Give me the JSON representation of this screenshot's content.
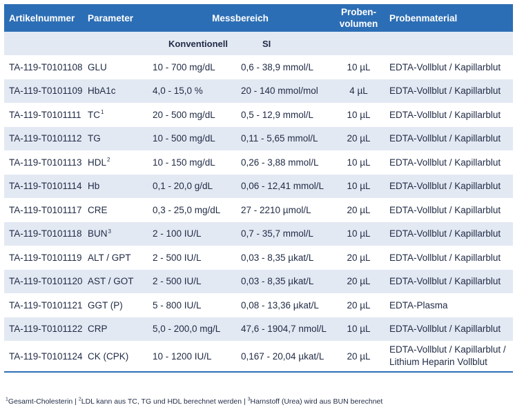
{
  "table": {
    "headers": {
      "artikelnummer": "Artikelnummer",
      "parameter": "Parameter",
      "messbereich": "Messbereich",
      "proben_line1": "Proben-",
      "proben_line2": "volumen",
      "probenmaterial": "Probenmaterial"
    },
    "subheaders": {
      "konventionell": "Konventionell",
      "si": "SI"
    },
    "rows": [
      {
        "artikel": "TA-119-T0101108",
        "param": "GLU",
        "sup": "",
        "konv": "10 - 700 mg/dL",
        "si": "0,6 - 38,9 mmol/L",
        "vol": "10 µL",
        "mat": "EDTA-Vollblut / Kapillarblut"
      },
      {
        "artikel": "TA-119-T0101109",
        "param": "HbA1c",
        "sup": "",
        "konv": "4,0 - 15,0 %",
        "si": "20 - 140 mmol/mol",
        "vol": "4 µL",
        "mat": "EDTA-Vollblut / Kapillarblut"
      },
      {
        "artikel": "TA-119-T0101111",
        "param": "TC",
        "sup": "1",
        "konv": "20 - 500 mg/dL",
        "si": "0,5 - 12,9 mmol/L",
        "vol": "10 µL",
        "mat": "EDTA-Vollblut / Kapillarblut"
      },
      {
        "artikel": "TA-119-T0101112",
        "param": "TG",
        "sup": "",
        "konv": "10 - 500 mg/dL",
        "si": "0,11 - 5,65 mmol/L",
        "vol": "20 µL",
        "mat": "EDTA-Vollblut / Kapillarblut"
      },
      {
        "artikel": "TA-119-T0101113",
        "param": "HDL",
        "sup": "2",
        "konv": "10 - 150 mg/dL",
        "si": "0,26 - 3,88 mmol/L",
        "vol": "10 µL",
        "mat": "EDTA-Vollblut / Kapillarblut"
      },
      {
        "artikel": "TA-119-T0101114",
        "param": "Hb",
        "sup": "",
        "konv": "0,1 - 20,0 g/dL",
        "si": "0,06 - 12,41 mmol/L",
        "vol": "10 µL",
        "mat": "EDTA-Vollblut / Kapillarblut"
      },
      {
        "artikel": "TA-119-T0101117",
        "param": "CRE",
        "sup": "",
        "konv": "0,3 - 25,0 mg/dL",
        "si": "27 - 2210 µmol/L",
        "vol": "20 µL",
        "mat": "EDTA-Vollblut / Kapillarblut"
      },
      {
        "artikel": "TA-119-T0101118",
        "param": "BUN",
        "sup": "3",
        "konv": "2 - 100 IU/L",
        "si": "0,7 - 35,7 mmol/L",
        "vol": "10 µL",
        "mat": "EDTA-Vollblut / Kapillarblut"
      },
      {
        "artikel": "TA-119-T0101119",
        "param": "ALT / GPT",
        "sup": "",
        "konv": "2 - 500 IU/L",
        "si": "0,03 - 8,35 µkat/L",
        "vol": "20 µL",
        "mat": "EDTA-Vollblut / Kapillarblut"
      },
      {
        "artikel": "TA-119-T0101120",
        "param": "AST / GOT",
        "sup": "",
        "konv": "2 - 500 IU/L",
        "si": "0,03 - 8,35 µkat/L",
        "vol": "20 µL",
        "mat": "EDTA-Vollblut / Kapillarblut"
      },
      {
        "artikel": "TA-119-T0101121",
        "param": "GGT (P)",
        "sup": "",
        "konv": "5 - 800 IU/L",
        "si": "0,08 - 13,36 µkat/L",
        "vol": "20 µL",
        "mat": "EDTA-Plasma"
      },
      {
        "artikel": "TA-119-T0101122",
        "param": "CRP",
        "sup": "",
        "konv": "5,0 - 200,0 mg/L",
        "si": "47,6 - 1904,7 nmol/L",
        "vol": "10 µL",
        "mat": "EDTA-Vollblut / Kapillarblut"
      },
      {
        "artikel": "TA-119-T0101124",
        "param": "CK (CPK)",
        "sup": "",
        "konv": "10 - 1200 IU/L",
        "si": "0,167 - 20,04 µkat/L",
        "vol": "20 µL",
        "mat": "EDTA-Vollblut / Kapillarblut /",
        "mat2": "Lithium Heparin Vollblut"
      }
    ]
  },
  "footnote": {
    "n1": "1",
    "t1": "Gesamt-Cholesterin | ",
    "n2": "2",
    "t2": "LDL kann aus TC, TG und HDL berechnet werden | ",
    "n3": "3",
    "t3": "Harnstoff (Urea) wird aus BUN berechnet"
  }
}
